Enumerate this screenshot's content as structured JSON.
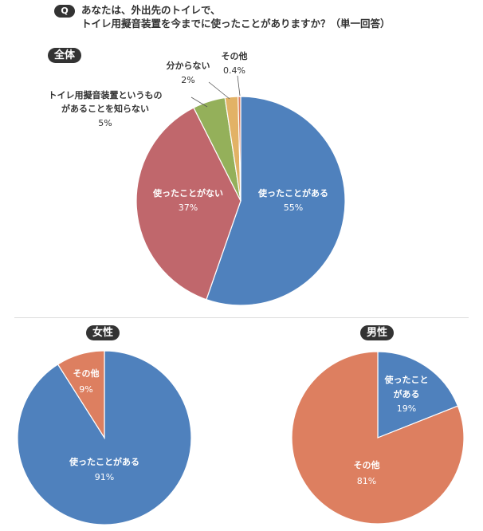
{
  "question": {
    "badge": "Q",
    "line1": "あなたは、外出先のトイレで、",
    "line2": "トイレ用擬音装置を今までに使ったことがありますか？（単一回答）"
  },
  "sections": {
    "overall": "全体",
    "female": "女性",
    "male": "男性"
  },
  "colors": {
    "blue": "#4f81bd",
    "red": "#c0676c",
    "green": "#94b05a",
    "orange_small": "#e2b266",
    "salmon": "#dd7f60",
    "outline": "#ffffff"
  },
  "chart_data": [
    {
      "type": "pie",
      "name": "全体",
      "slices": [
        {
          "label": "使ったことがある",
          "value": 55,
          "display": "55%"
        },
        {
          "label": "使ったことがない",
          "value": 37,
          "display": "37%"
        },
        {
          "label": "トイレ用擬音装置というものがあることを知らない",
          "label_line1": "トイレ用擬音装置というもの",
          "label_line2": "があることを知らない",
          "value": 5,
          "display": "5%"
        },
        {
          "label": "分からない",
          "value": 2,
          "display": "2%"
        },
        {
          "label": "その他",
          "value": 0.4,
          "display": "0.4%"
        }
      ]
    },
    {
      "type": "pie",
      "name": "女性",
      "slices": [
        {
          "label": "使ったことがある",
          "value": 91,
          "display": "91%"
        },
        {
          "label": "その他",
          "value": 9,
          "display": "9%"
        }
      ]
    },
    {
      "type": "pie",
      "name": "男性",
      "slices": [
        {
          "label": "使ったことがある",
          "label_line1": "使ったこと",
          "label_line2": "がある",
          "value": 19,
          "display": "19%"
        },
        {
          "label": "その他",
          "value": 81,
          "display": "81%"
        }
      ]
    }
  ]
}
